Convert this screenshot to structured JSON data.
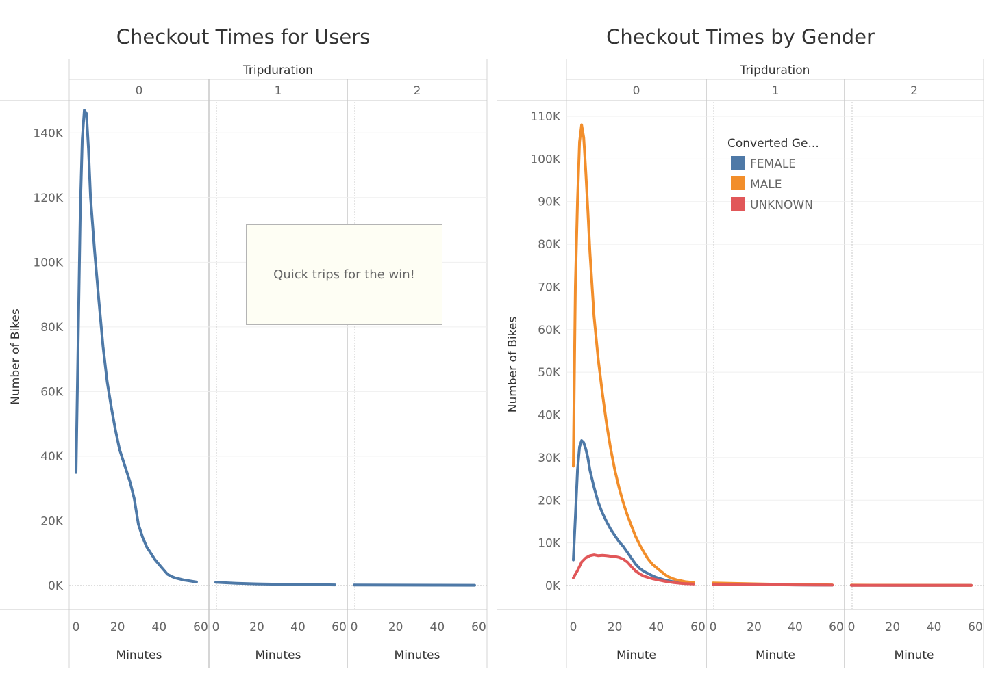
{
  "chart_data": [
    {
      "type": "line",
      "title": "Checkout Times for Users",
      "column_header": "Tripduration",
      "columns": [
        "0",
        "1",
        "2"
      ],
      "xlabel": "Minutes",
      "ylabel": "Number of Bikes",
      "xlim": [
        0,
        60
      ],
      "xticks": [
        "0",
        "20",
        "40",
        "60"
      ],
      "ylim": [
        0,
        150000
      ],
      "yticks": [
        {
          "value": 0,
          "label": "0K"
        },
        {
          "value": 20000,
          "label": "20K"
        },
        {
          "value": 40000,
          "label": "40K"
        },
        {
          "value": 60000,
          "label": "60K"
        },
        {
          "value": 80000,
          "label": "80K"
        },
        {
          "value": 100000,
          "label": "100K"
        },
        {
          "value": 120000,
          "label": "120K"
        },
        {
          "value": 140000,
          "label": "140K"
        }
      ],
      "grid": true,
      "annotation": "Quick trips for the win!",
      "series": [
        {
          "color": "#4e79a7",
          "panels": [
            [
              [
                0,
                35000
              ],
              [
                2,
                115000
              ],
              [
                3,
                138000
              ],
              [
                4,
                147000
              ],
              [
                5,
                146000
              ],
              [
                6,
                135000
              ],
              [
                7,
                120000
              ],
              [
                9,
                103000
              ],
              [
                11,
                88000
              ],
              [
                13,
                74000
              ],
              [
                15,
                63000
              ],
              [
                17,
                55000
              ],
              [
                19,
                48000
              ],
              [
                21,
                42000
              ],
              [
                23,
                38000
              ],
              [
                26,
                32000
              ],
              [
                28,
                27000
              ],
              [
                30,
                19000
              ],
              [
                32,
                15000
              ],
              [
                34,
                12000
              ],
              [
                36,
                10000
              ],
              [
                38,
                8000
              ],
              [
                40,
                6500
              ],
              [
                42,
                5000
              ],
              [
                44,
                3500
              ],
              [
                46,
                2800
              ],
              [
                48,
                2300
              ],
              [
                50,
                2000
              ],
              [
                52,
                1700
              ],
              [
                54,
                1500
              ],
              [
                56,
                1300
              ],
              [
                58,
                1100
              ]
            ],
            [
              [
                0,
                1000
              ],
              [
                10,
                700
              ],
              [
                20,
                500
              ],
              [
                30,
                400
              ],
              [
                40,
                300
              ],
              [
                50,
                250
              ],
              [
                58,
                200
              ]
            ],
            [
              [
                0,
                150
              ],
              [
                20,
                120
              ],
              [
                40,
                100
              ],
              [
                58,
                80
              ]
            ]
          ]
        }
      ]
    },
    {
      "type": "line",
      "title": "Checkout Times by Gender",
      "column_header": "Tripduration",
      "columns": [
        "0",
        "1",
        "2"
      ],
      "xlabel": "Minute",
      "ylabel": "Number of Bikes",
      "xlim": [
        0,
        60
      ],
      "xticks": [
        "0",
        "20",
        "40",
        "60"
      ],
      "ylim": [
        0,
        110000
      ],
      "yticks": [
        {
          "value": 0,
          "label": "0K"
        },
        {
          "value": 10000,
          "label": "10K"
        },
        {
          "value": 20000,
          "label": "20K"
        },
        {
          "value": 30000,
          "label": "30K"
        },
        {
          "value": 40000,
          "label": "40K"
        },
        {
          "value": 50000,
          "label": "50K"
        },
        {
          "value": 60000,
          "label": "60K"
        },
        {
          "value": 70000,
          "label": "70K"
        },
        {
          "value": 80000,
          "label": "80K"
        },
        {
          "value": 90000,
          "label": "90K"
        },
        {
          "value": 100000,
          "label": "100K"
        },
        {
          "value": 110000,
          "label": "110K"
        }
      ],
      "grid": true,
      "legend": {
        "title": "Converted Ge...",
        "position": "top-right"
      },
      "series": [
        {
          "name": "FEMALE",
          "color": "#4e79a7",
          "panels": [
            [
              [
                0,
                6000
              ],
              [
                1,
                16000
              ],
              [
                2,
                27000
              ],
              [
                3,
                32500
              ],
              [
                4,
                34000
              ],
              [
                5,
                33500
              ],
              [
                6,
                32000
              ],
              [
                7,
                30000
              ],
              [
                8,
                27000
              ],
              [
                10,
                23000
              ],
              [
                12,
                19500
              ],
              [
                14,
                17000
              ],
              [
                16,
                15000
              ],
              [
                18,
                13200
              ],
              [
                20,
                11700
              ],
              [
                22,
                10300
              ],
              [
                24,
                9200
              ],
              [
                26,
                7800
              ],
              [
                28,
                6400
              ],
              [
                30,
                5000
              ],
              [
                32,
                4000
              ],
              [
                34,
                3300
              ],
              [
                36,
                2800
              ],
              [
                38,
                2300
              ],
              [
                40,
                1900
              ],
              [
                42,
                1600
              ],
              [
                44,
                1300
              ],
              [
                46,
                1100
              ],
              [
                48,
                900
              ],
              [
                50,
                800
              ],
              [
                52,
                700
              ],
              [
                54,
                600
              ],
              [
                56,
                500
              ],
              [
                58,
                450
              ]
            ],
            [
              [
                0,
                400
              ],
              [
                10,
                300
              ],
              [
                20,
                250
              ],
              [
                30,
                200
              ],
              [
                40,
                150
              ],
              [
                50,
                100
              ],
              [
                58,
                80
              ]
            ],
            [
              [
                0,
                60
              ],
              [
                20,
                50
              ],
              [
                40,
                40
              ],
              [
                58,
                30
              ]
            ]
          ]
        },
        {
          "name": "MALE",
          "color": "#f28e2b",
          "panels": [
            [
              [
                0,
                28000
              ],
              [
                1,
                70000
              ],
              [
                2,
                90000
              ],
              [
                3,
                104000
              ],
              [
                4,
                108000
              ],
              [
                5,
                105000
              ],
              [
                6,
                97000
              ],
              [
                7,
                88000
              ],
              [
                8,
                78000
              ],
              [
                10,
                63000
              ],
              [
                12,
                53000
              ],
              [
                14,
                45000
              ],
              [
                16,
                38000
              ],
              [
                18,
                32000
              ],
              [
                20,
                27000
              ],
              [
                22,
                23000
              ],
              [
                24,
                19500
              ],
              [
                26,
                16500
              ],
              [
                28,
                14000
              ],
              [
                30,
                11500
              ],
              [
                32,
                9500
              ],
              [
                34,
                7800
              ],
              [
                36,
                6200
              ],
              [
                38,
                5000
              ],
              [
                40,
                4200
              ],
              [
                42,
                3400
              ],
              [
                44,
                2600
              ],
              [
                46,
                2000
              ],
              [
                48,
                1600
              ],
              [
                50,
                1300
              ],
              [
                52,
                1100
              ],
              [
                54,
                900
              ],
              [
                56,
                800
              ],
              [
                58,
                700
              ]
            ],
            [
              [
                0,
                600
              ],
              [
                10,
                500
              ],
              [
                20,
                400
              ],
              [
                30,
                300
              ],
              [
                40,
                250
              ],
              [
                50,
                200
              ],
              [
                58,
                150
              ]
            ],
            [
              [
                0,
                100
              ],
              [
                20,
                80
              ],
              [
                40,
                60
              ],
              [
                58,
                50
              ]
            ]
          ]
        },
        {
          "name": "UNKNOWN",
          "color": "#e15759",
          "panels": [
            [
              [
                0,
                1800
              ],
              [
                2,
                3500
              ],
              [
                4,
                5500
              ],
              [
                6,
                6500
              ],
              [
                8,
                7000
              ],
              [
                10,
                7200
              ],
              [
                12,
                7000
              ],
              [
                14,
                7100
              ],
              [
                16,
                7000
              ],
              [
                18,
                6900
              ],
              [
                20,
                6800
              ],
              [
                22,
                6600
              ],
              [
                24,
                6200
              ],
              [
                26,
                5500
              ],
              [
                28,
                4400
              ],
              [
                30,
                3400
              ],
              [
                32,
                2700
              ],
              [
                34,
                2200
              ],
              [
                36,
                1900
              ],
              [
                38,
                1600
              ],
              [
                40,
                1400
              ],
              [
                42,
                1200
              ],
              [
                44,
                1000
              ],
              [
                46,
                850
              ],
              [
                48,
                700
              ],
              [
                50,
                600
              ],
              [
                52,
                500
              ],
              [
                54,
                450
              ],
              [
                56,
                400
              ],
              [
                58,
                350
              ]
            ],
            [
              [
                0,
                300
              ],
              [
                20,
                200
              ],
              [
                40,
                150
              ],
              [
                58,
                100
              ]
            ],
            [
              [
                0,
                50
              ],
              [
                30,
                40
              ],
              [
                58,
                30
              ]
            ]
          ]
        }
      ]
    }
  ]
}
